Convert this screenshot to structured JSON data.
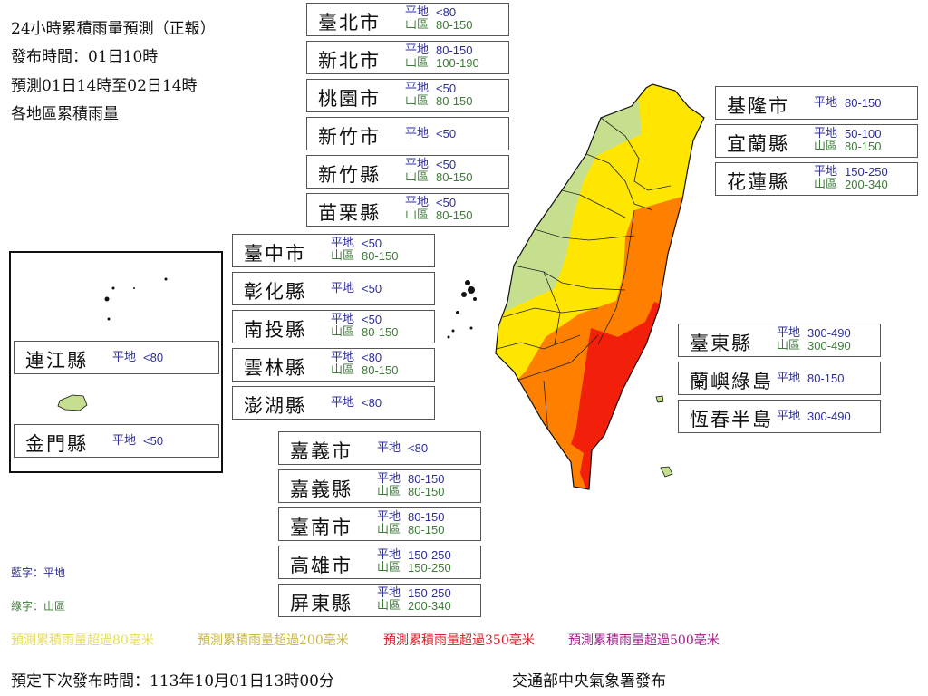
{
  "header": {
    "title": "24小時累積雨量預測（正報）",
    "issued": "發布時間：01日10時",
    "period": "預測01日14時至02日14時",
    "subtitle": "各地區累積雨量"
  },
  "labels": {
    "flat": "平地",
    "mountain": "山區"
  },
  "regions": [
    {
      "name": "臺北市",
      "flat": "<80",
      "mountain": "80-150"
    },
    {
      "name": "新北市",
      "flat": "80-150",
      "mountain": "100-190"
    },
    {
      "name": "桃園市",
      "flat": "<50",
      "mountain": "80-150"
    },
    {
      "name": "新竹市",
      "flat": "<50"
    },
    {
      "name": "新竹縣",
      "flat": "<50",
      "mountain": "80-150"
    },
    {
      "name": "苗栗縣",
      "flat": "<50",
      "mountain": "80-150"
    },
    {
      "name": "臺中市",
      "flat": "<50",
      "mountain": "80-150"
    },
    {
      "name": "彰化縣",
      "flat": "<50"
    },
    {
      "name": "南投縣",
      "flat": "<50",
      "mountain": "80-150"
    },
    {
      "name": "雲林縣",
      "flat": "<80",
      "mountain": "80-150"
    },
    {
      "name": "澎湖縣",
      "flat": "<80"
    },
    {
      "name": "嘉義市",
      "flat": "<80"
    },
    {
      "name": "嘉義縣",
      "flat": "80-150",
      "mountain": "80-150"
    },
    {
      "name": "臺南市",
      "flat": "80-150",
      "mountain": "80-150"
    },
    {
      "name": "高雄市",
      "flat": "150-250",
      "mountain": "150-250"
    },
    {
      "name": "屏東縣",
      "flat": "150-250",
      "mountain": "200-340"
    },
    {
      "name": "基隆市",
      "flat": "80-150"
    },
    {
      "name": "宜蘭縣",
      "flat": "50-100",
      "mountain": "80-150"
    },
    {
      "name": "花蓮縣",
      "flat": "150-250",
      "mountain": "200-340"
    },
    {
      "name": "臺東縣",
      "flat": "300-490",
      "mountain": "300-490"
    },
    {
      "name": "蘭嶼綠島",
      "flat": "80-150"
    },
    {
      "name": "恆春半島",
      "flat": "300-490"
    },
    {
      "name": "連江縣",
      "flat": "<80"
    },
    {
      "name": "金門縣",
      "flat": "<50"
    }
  ],
  "legend": {
    "blue": "藍字：平地",
    "green": "綠字：山區"
  },
  "thresholds": [
    {
      "text": "預測累積雨量超過80毫米",
      "color": "#e6dc5a"
    },
    {
      "text": "預測累積雨量超過200毫米",
      "color": "#c9b640"
    },
    {
      "text": "預測累積雨量超過350毫米",
      "color": "#d4202a"
    },
    {
      "text": "預測累積雨量超過500毫米",
      "color": "#a0208a"
    }
  ],
  "map_colors": {
    "lt50": "#c5df8f",
    "50to80": "#c5df8f",
    "80plus": "#ffe600",
    "200plus": "#ff7f00",
    "350plus": "#f21f0a"
  },
  "footer": {
    "next": "預定下次發布時間：113年10月01日13時00分",
    "agency": "交通部中央氣象署發布"
  }
}
